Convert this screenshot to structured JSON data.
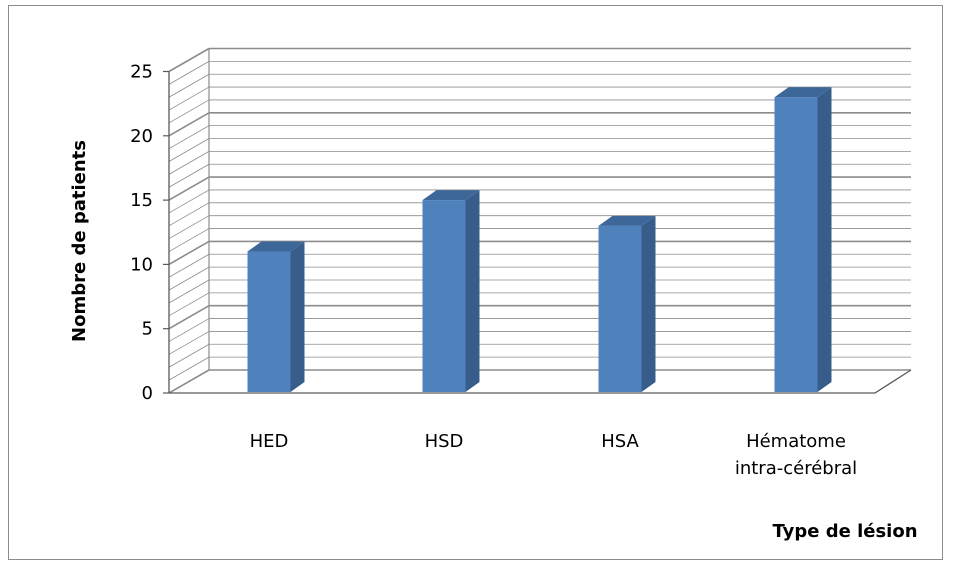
{
  "chart_data": {
    "type": "bar",
    "title": "",
    "xlabel": "Type de lésion",
    "ylabel": "Nombre de patients",
    "categories": [
      [
        "HED"
      ],
      [
        "HSD"
      ],
      [
        "HSA"
      ],
      [
        "Hématome",
        "intra-cérébral"
      ]
    ],
    "values": [
      11,
      15,
      13,
      23
    ],
    "ylim": [
      0,
      25
    ],
    "yticks": [
      0,
      5,
      10,
      15,
      20,
      25
    ],
    "grid": true,
    "legend": "none",
    "colors": {
      "bar_front": "#4f81bd",
      "bar_side": "#385d8a",
      "bar_top": "#3d6799",
      "grid": "#8c8c8c",
      "axis": "#595959"
    }
  }
}
